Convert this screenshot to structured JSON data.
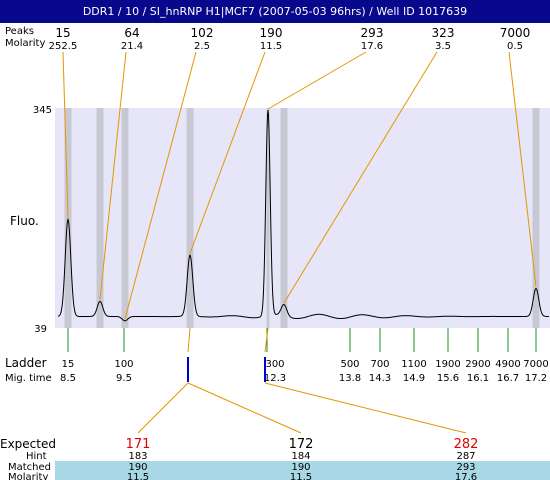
{
  "title": "DDR1 / 10 / SI_hnRNP H1|MCF7 (2007-05-03 96hrs) / Well ID 1017639",
  "colors": {
    "title_bg": "#08088c",
    "plot_bg": "#e6e6f8",
    "peak_band": "#c8c8d4",
    "orange": "#e69500",
    "green": "#1a8c1a",
    "blue": "#0000cc",
    "expected_red": "#e00000",
    "matched_bg": "#a8d8e6"
  },
  "labels": {
    "header_top": "Peaks",
    "header_bottom": "Molarity",
    "fluo": "Fluo.",
    "ladder": "Ladder",
    "mig_time": "Mig. time",
    "expected": "Expected",
    "hint": "Hint",
    "matched": "Matched",
    "molarity": "Molarity"
  },
  "chart_data": {
    "type": "line",
    "ylim": [
      39,
      345
    ],
    "y_ticks": [
      "345",
      "39"
    ],
    "ylabel": "Fluo.",
    "x_unit": "size (bp)",
    "peaks": [
      {
        "size": "15",
        "molarity": "252.5",
        "height": 190
      },
      {
        "size": "64",
        "molarity": "21.4",
        "height": 76
      },
      {
        "size": "102",
        "molarity": "2.5",
        "height": 49
      },
      {
        "size": "190",
        "molarity": "11.5",
        "height": 140
      },
      {
        "size": "293",
        "molarity": "17.6",
        "height": 341
      },
      {
        "size": "323",
        "molarity": "3.5",
        "height": 71
      },
      {
        "size": "7000",
        "molarity": "0.5",
        "height": 94
      }
    ],
    "ladder": [
      {
        "size": "15",
        "time": "8.5"
      },
      {
        "size": "100",
        "time": "9.5"
      },
      {
        "size": "300",
        "time": "12.3"
      },
      {
        "size": "500",
        "time": "13.8"
      },
      {
        "size": "700",
        "time": "14.3"
      },
      {
        "size": "1100",
        "time": "14.9"
      },
      {
        "size": "1900",
        "time": "15.6"
      },
      {
        "size": "2900",
        "time": "16.1"
      },
      {
        "size": "4900",
        "time": "16.7"
      },
      {
        "size": "7000",
        "time": "17.2"
      }
    ],
    "table": {
      "expected": [
        "171",
        "172",
        "282"
      ],
      "hint": [
        "183",
        "184",
        "287"
      ],
      "matched": [
        "190",
        "190",
        "293"
      ],
      "molarity": [
        "11.5",
        "11.5",
        "17.6"
      ]
    }
  }
}
